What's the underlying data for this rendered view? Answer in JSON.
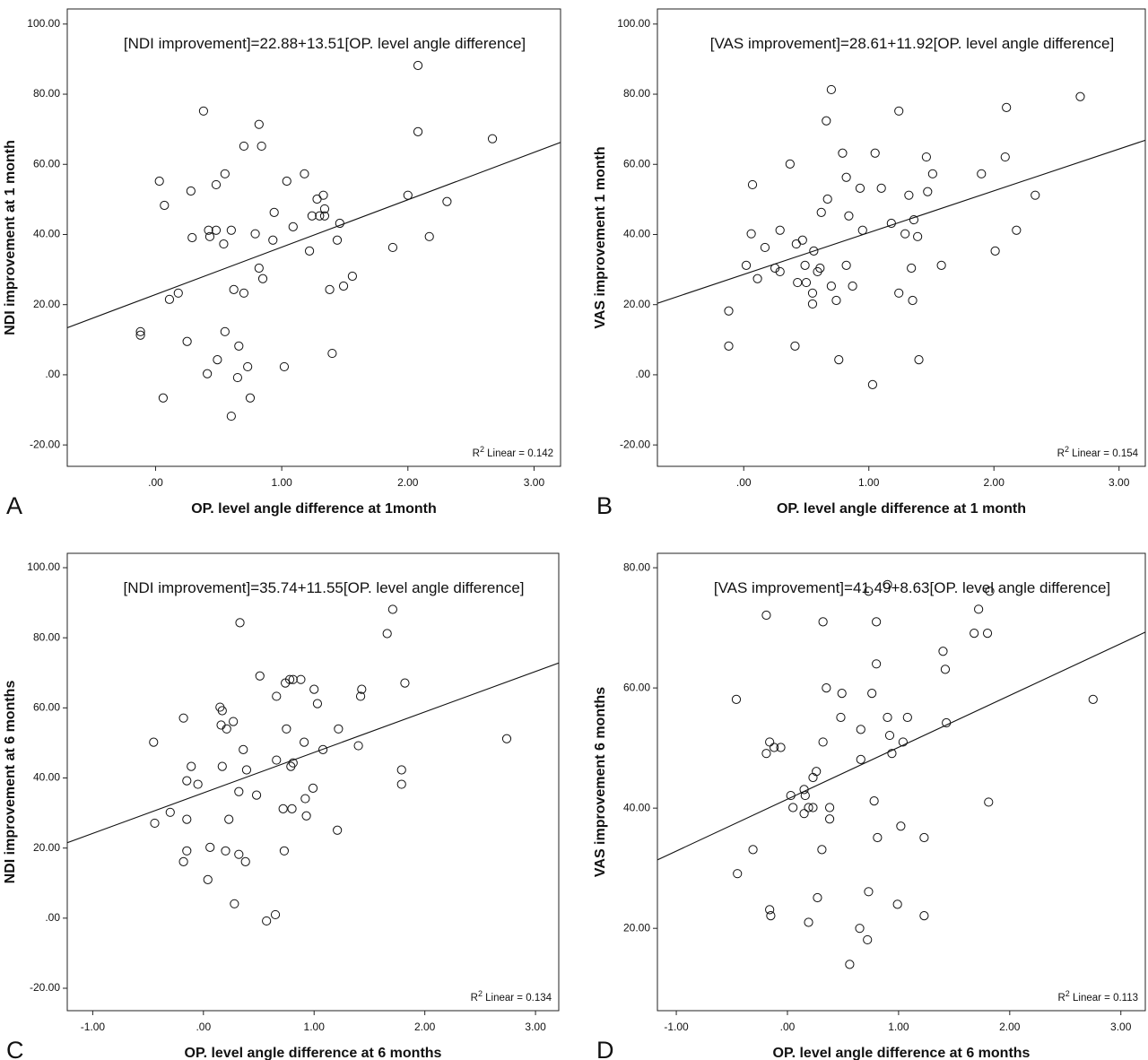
{
  "chart_data": [
    {
      "type": "scatter",
      "panel": "A",
      "annotation": "[NDI improvement]=22.88+13.51[OP. level angle difference]",
      "fit": {
        "intercept": 22.88,
        "slope": 13.51
      },
      "r2": {
        "symbol": "R",
        "power": "2",
        "text": " Linear = 0.142"
      },
      "xlabel": "OP. level angle difference at 1month",
      "ylabel": "NDI improvement at 1 month",
      "xlim": [
        -0.7,
        3.21
      ],
      "ylim": [
        -26.1,
        104.3
      ],
      "xticks": [
        {
          "value": 0,
          "label": ".00"
        },
        {
          "value": 1,
          "label": "1.00"
        },
        {
          "value": 2,
          "label": "2.00"
        },
        {
          "value": 3,
          "label": "3.00"
        }
      ],
      "yticks": [
        {
          "value": -20,
          "label": "-20.00"
        },
        {
          "value": 0,
          "label": ".00"
        },
        {
          "value": 20,
          "label": "20.00"
        },
        {
          "value": 40,
          "label": "40.00"
        },
        {
          "value": 60,
          "label": "60.00"
        },
        {
          "value": 80,
          "label": "80.00"
        },
        {
          "value": 100,
          "label": "100.00"
        }
      ],
      "color": "#111111",
      "x": [
        -0.12,
        -0.12,
        0.03,
        0.07,
        0.06,
        0.11,
        0.18,
        0.28,
        0.29,
        0.25,
        0.38,
        0.42,
        0.43,
        0.48,
        0.48,
        0.41,
        0.49,
        0.55,
        0.54,
        0.55,
        0.6,
        0.62,
        0.6,
        0.65,
        0.66,
        0.7,
        0.7,
        0.73,
        0.75,
        0.79,
        0.82,
        0.84,
        0.82,
        0.85,
        0.94,
        0.93,
        1.02,
        1.04,
        1.09,
        1.18,
        1.22,
        1.24,
        1.28,
        1.3,
        1.33,
        1.34,
        1.34,
        1.38,
        1.4,
        1.44,
        1.46,
        1.49,
        1.56,
        1.88,
        2.0,
        2.08,
        2.08,
        2.17,
        2.31,
        2.67
      ],
      "values": [
        12.3,
        11.3,
        55.2,
        48.3,
        -6.6,
        21.5,
        23.3,
        52.4,
        39.1,
        9.5,
        75.2,
        41.2,
        39.4,
        41.2,
        54.2,
        0.3,
        4.3,
        57.3,
        37.3,
        12.3,
        41.2,
        24.3,
        -11.8,
        -0.8,
        8.2,
        65.2,
        23.3,
        2.3,
        -6.6,
        40.2,
        71.4,
        65.2,
        30.4,
        27.4,
        46.3,
        38.4,
        2.3,
        55.2,
        42.2,
        57.3,
        35.3,
        45.3,
        50.1,
        45.3,
        51.2,
        47.3,
        45.3,
        24.3,
        6.1,
        38.4,
        43.2,
        25.3,
        28.1,
        36.3,
        51.2,
        88.2,
        69.3,
        39.4,
        49.4,
        67.3
      ]
    },
    {
      "type": "scatter",
      "panel": "B",
      "annotation": "[VAS improvement]=28.61+11.92[OP. level angle difference]",
      "fit": {
        "intercept": 28.61,
        "slope": 11.92
      },
      "r2": {
        "symbol": "R",
        "power": "2",
        "text": " Linear = 0.154"
      },
      "xlabel": "OP. level angle difference at 1 month",
      "ylabel": "VAS improvement 1 month",
      "xlim": [
        -0.69,
        3.21
      ],
      "ylim": [
        -26.1,
        104.3
      ],
      "xticks": [
        {
          "value": 0,
          "label": ".00"
        },
        {
          "value": 1,
          "label": "1.00"
        },
        {
          "value": 2,
          "label": "2.00"
        },
        {
          "value": 3,
          "label": "3.00"
        }
      ],
      "yticks": [
        {
          "value": -20,
          "label": "-20.00"
        },
        {
          "value": 0,
          "label": ".00"
        },
        {
          "value": 20,
          "label": "20.00"
        },
        {
          "value": 40,
          "label": "40.00"
        },
        {
          "value": 60,
          "label": "60.00"
        },
        {
          "value": 80,
          "label": "80.00"
        },
        {
          "value": 100,
          "label": "100.00"
        }
      ],
      "color": "#111111",
      "x": [
        -0.12,
        -0.12,
        0.02,
        0.06,
        0.07,
        0.11,
        0.17,
        0.25,
        0.29,
        0.29,
        0.37,
        0.41,
        0.42,
        0.43,
        0.47,
        0.49,
        0.5,
        0.55,
        0.55,
        0.56,
        0.59,
        0.61,
        0.62,
        0.66,
        0.67,
        0.7,
        0.7,
        0.74,
        0.76,
        0.79,
        0.82,
        0.82,
        0.84,
        0.87,
        0.93,
        0.95,
        1.03,
        1.05,
        1.1,
        1.18,
        1.24,
        1.24,
        1.29,
        1.32,
        1.34,
        1.35,
        1.36,
        1.39,
        1.4,
        1.46,
        1.47,
        1.51,
        1.58,
        1.9,
        2.01,
        2.1,
        2.09,
        2.18,
        2.33,
        2.69
      ],
      "values": [
        18.2,
        8.2,
        31.2,
        40.2,
        54.2,
        27.4,
        36.3,
        30.4,
        29.4,
        41.2,
        60.1,
        8.2,
        37.3,
        26.3,
        38.4,
        31.2,
        26.3,
        23.3,
        20.2,
        35.3,
        29.4,
        30.4,
        46.3,
        72.4,
        50.1,
        81.3,
        25.3,
        21.2,
        4.3,
        63.2,
        56.3,
        31.2,
        45.3,
        25.3,
        53.2,
        41.2,
        -2.8,
        63.2,
        53.2,
        43.2,
        75.2,
        23.3,
        40.2,
        51.2,
        30.4,
        21.2,
        44.2,
        39.4,
        4.3,
        62.1,
        52.2,
        57.3,
        31.2,
        57.3,
        35.3,
        76.2,
        62.1,
        41.2,
        51.2,
        79.3
      ]
    },
    {
      "type": "scatter",
      "panel": "C",
      "annotation": "[NDI improvement]=35.74+11.55[OP. level angle difference]",
      "fit": {
        "intercept": 35.74,
        "slope": 11.55
      },
      "r2": {
        "symbol": "R",
        "power": "2",
        "text": " Linear = 0.134"
      },
      "xlabel": "OP. level angle difference at 6 months",
      "ylabel": "NDI improvement at 6 months",
      "xlim": [
        -1.23,
        3.21
      ],
      "ylim": [
        -26.4,
        104.1
      ],
      "xticks": [
        {
          "value": -1,
          "label": "-1.00"
        },
        {
          "value": 0,
          "label": ".00"
        },
        {
          "value": 1,
          "label": "1.00"
        },
        {
          "value": 2,
          "label": "2.00"
        },
        {
          "value": 3,
          "label": "3.00"
        }
      ],
      "yticks": [
        {
          "value": -20,
          "label": "-20.00"
        },
        {
          "value": 0,
          "label": ".00"
        },
        {
          "value": 20,
          "label": "20.00"
        },
        {
          "value": 40,
          "label": "40.00"
        },
        {
          "value": 60,
          "label": "60.00"
        },
        {
          "value": 80,
          "label": "80.00"
        },
        {
          "value": 100,
          "label": "100.00"
        }
      ],
      "color": "#111111",
      "x": [
        -0.45,
        -0.44,
        -0.3,
        -0.18,
        -0.18,
        -0.15,
        -0.15,
        -0.15,
        -0.11,
        -0.05,
        0.04,
        0.06,
        0.15,
        0.17,
        0.16,
        0.17,
        0.21,
        0.2,
        0.23,
        0.27,
        0.28,
        0.32,
        0.32,
        0.33,
        0.36,
        0.38,
        0.39,
        0.48,
        0.51,
        0.57,
        0.65,
        0.66,
        0.66,
        0.72,
        0.73,
        0.74,
        0.75,
        0.78,
        0.79,
        0.8,
        0.81,
        0.81,
        0.88,
        0.91,
        0.92,
        0.93,
        0.99,
        1.0,
        1.03,
        1.08,
        1.21,
        1.22,
        1.4,
        1.42,
        1.43,
        1.66,
        1.71,
        1.79,
        1.79,
        1.82,
        2.74
      ],
      "values": [
        50.2,
        27.1,
        30.2,
        57.1,
        16.1,
        39.2,
        28.2,
        19.2,
        43.3,
        38.2,
        11.0,
        20.2,
        60.2,
        59.2,
        55.1,
        43.3,
        54.0,
        19.2,
        28.2,
        56.1,
        4.1,
        36.1,
        18.2,
        84.3,
        48.1,
        16.1,
        42.3,
        35.1,
        69.1,
        -0.8,
        1.0,
        63.3,
        45.1,
        31.2,
        19.2,
        67.1,
        54.0,
        68.1,
        43.3,
        31.2,
        44.3,
        68.1,
        68.1,
        50.2,
        34.1,
        29.2,
        37.1,
        65.3,
        61.2,
        48.1,
        25.1,
        54.0,
        49.2,
        63.3,
        65.3,
        81.2,
        88.1,
        42.3,
        38.2,
        67.1,
        51.2
      ]
    },
    {
      "type": "scatter",
      "panel": "D",
      "annotation": "[VAS improvement]=41.49+8.63[OP. level angle difference]",
      "fit": {
        "intercept": 41.49,
        "slope": 8.63
      },
      "r2": {
        "symbol": "R",
        "power": "2",
        "text": " Linear = 0.113"
      },
      "xlabel": "OP. level angle difference at 6 months",
      "ylabel": "VAS improvement 6 months",
      "xlim": [
        -1.17,
        3.22
      ],
      "ylim": [
        6.3,
        82.4
      ],
      "xticks": [
        {
          "value": -1,
          "label": "-1.00"
        },
        {
          "value": 0,
          "label": ".00"
        },
        {
          "value": 1,
          "label": "1.00"
        },
        {
          "value": 2,
          "label": "2.00"
        },
        {
          "value": 3,
          "label": "3.00"
        }
      ],
      "yticks": [
        {
          "value": 20,
          "label": "20.00"
        },
        {
          "value": 40,
          "label": "40.00"
        },
        {
          "value": 60,
          "label": "60.00"
        },
        {
          "value": 80,
          "label": "80.00"
        }
      ],
      "color": "#111111",
      "x": [
        -0.46,
        -0.45,
        -0.31,
        -0.19,
        -0.19,
        -0.16,
        -0.16,
        -0.15,
        -0.12,
        -0.06,
        0.03,
        0.05,
        0.15,
        0.16,
        0.15,
        0.19,
        0.23,
        0.23,
        0.26,
        0.19,
        0.27,
        0.31,
        0.32,
        0.32,
        0.35,
        0.38,
        0.38,
        0.48,
        0.49,
        0.56,
        0.65,
        0.66,
        0.66,
        0.72,
        0.73,
        0.73,
        0.76,
        0.78,
        0.8,
        0.8,
        0.81,
        0.9,
        0.9,
        0.92,
        0.94,
        0.99,
        1.02,
        1.04,
        1.08,
        1.23,
        1.23,
        1.4,
        1.42,
        1.43,
        1.68,
        1.72,
        1.8,
        1.82,
        1.81,
        2.75
      ],
      "values": [
        58.1,
        29.1,
        33.1,
        72.1,
        49.1,
        51.0,
        23.1,
        22.1,
        50.1,
        50.1,
        42.1,
        40.1,
        43.1,
        42.1,
        39.1,
        40.1,
        40.1,
        45.1,
        46.1,
        21.0,
        25.1,
        33.1,
        51.0,
        71.0,
        60.0,
        40.1,
        38.2,
        55.1,
        59.1,
        14.0,
        20.0,
        53.1,
        48.1,
        18.1,
        26.1,
        76.1,
        59.1,
        41.2,
        71.0,
        64.0,
        35.1,
        77.2,
        55.1,
        52.1,
        49.1,
        24.0,
        37.0,
        51.0,
        55.1,
        22.1,
        35.1,
        66.1,
        63.1,
        54.2,
        69.1,
        73.1,
        69.1,
        76.1,
        41.0,
        58.1
      ]
    }
  ]
}
